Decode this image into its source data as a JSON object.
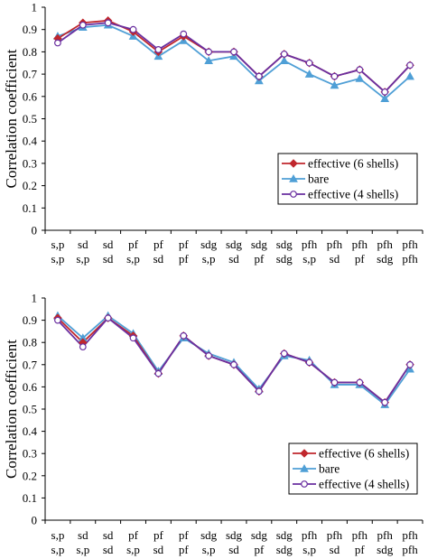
{
  "chart_data": [
    {
      "type": "line",
      "categories_top": [
        "s,p",
        "sd",
        "sd",
        "pf",
        "pf",
        "pf",
        "sdg",
        "sdg",
        "sdg",
        "sdg",
        "pfh",
        "pfh",
        "pfh",
        "pfh",
        "pfh"
      ],
      "categories_bottom": [
        "s,p",
        "s,p",
        "sd",
        "s,p",
        "sd",
        "pf",
        "s,p",
        "sd",
        "pf",
        "sdg",
        "s,p",
        "sd",
        "pf",
        "sdg",
        "pfh"
      ],
      "ylabel": "Correlation coefficient",
      "ylim": [
        0,
        1
      ],
      "yticks": [
        "0",
        "0.1",
        "0.2",
        "0.3",
        "0.4",
        "0.5",
        "0.6",
        "0.7",
        "0.8",
        "0.9",
        "1"
      ],
      "legend_position": "lower-right",
      "series": [
        {
          "name": "effective (6 shells)",
          "color": "#c0272d",
          "marker": "diamond",
          "values": [
            0.86,
            0.93,
            0.94,
            0.89,
            0.8,
            0.87,
            0.8,
            0.8,
            0.69,
            0.79,
            0.75,
            0.69,
            0.72,
            0.62,
            0.74
          ]
        },
        {
          "name": "bare",
          "color": "#4f9fd6",
          "marker": "triangle",
          "values": [
            0.87,
            0.91,
            0.92,
            0.87,
            0.78,
            0.85,
            0.76,
            0.78,
            0.67,
            0.76,
            0.7,
            0.65,
            0.68,
            0.59,
            0.69
          ]
        },
        {
          "name": "effective (4 shells)",
          "color": "#6a2fa0",
          "marker": "circle",
          "values": [
            0.84,
            0.92,
            0.93,
            0.9,
            0.81,
            0.88,
            0.8,
            0.8,
            0.69,
            0.79,
            0.75,
            0.69,
            0.72,
            0.62,
            0.74
          ]
        }
      ]
    },
    {
      "type": "line",
      "categories_top": [
        "s,p",
        "sd",
        "sd",
        "pf",
        "pf",
        "pf",
        "sdg",
        "sdg",
        "sdg",
        "sdg",
        "pfh",
        "pfh",
        "pfh",
        "pfh",
        "pfh"
      ],
      "categories_bottom": [
        "s,p",
        "s,p",
        "sd",
        "s,p",
        "sd",
        "pf",
        "s,p",
        "sd",
        "pf",
        "sdg",
        "s,p",
        "sd",
        "pf",
        "sdg",
        "pfh"
      ],
      "ylabel": "Correlation coefficient",
      "ylim": [
        0,
        1
      ],
      "yticks": [
        "0",
        "0.1",
        "0.2",
        "0.3",
        "0.4",
        "0.5",
        "0.6",
        "0.7",
        "0.8",
        "0.9",
        "1"
      ],
      "legend_position": "lower-right",
      "series": [
        {
          "name": "effective (6 shells)",
          "color": "#c0272d",
          "marker": "diamond",
          "values": [
            0.91,
            0.8,
            0.91,
            0.83,
            0.66,
            0.83,
            0.74,
            0.7,
            0.58,
            0.75,
            0.71,
            0.62,
            0.62,
            0.53,
            0.7
          ]
        },
        {
          "name": "bare",
          "color": "#4f9fd6",
          "marker": "triangle",
          "values": [
            0.92,
            0.82,
            0.92,
            0.84,
            0.67,
            0.82,
            0.75,
            0.71,
            0.59,
            0.74,
            0.72,
            0.61,
            0.61,
            0.52,
            0.68
          ]
        },
        {
          "name": "effective (4 shells)",
          "color": "#6a2fa0",
          "marker": "circle",
          "values": [
            0.9,
            0.78,
            0.91,
            0.82,
            0.66,
            0.83,
            0.74,
            0.7,
            0.58,
            0.75,
            0.71,
            0.62,
            0.62,
            0.53,
            0.7
          ]
        }
      ]
    }
  ]
}
